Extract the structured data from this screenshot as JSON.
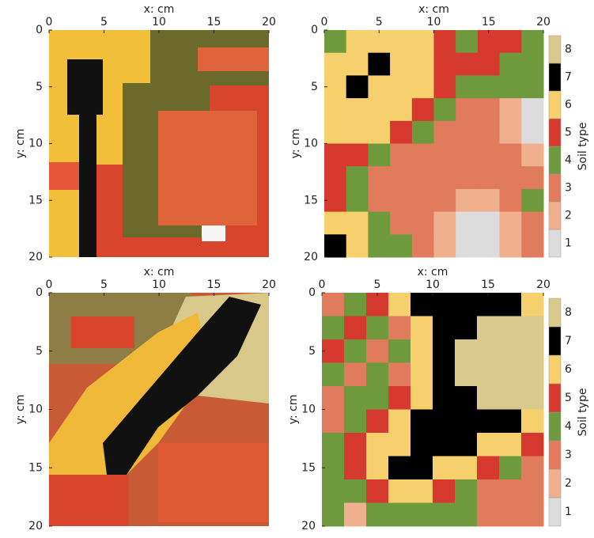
{
  "chart_data": [
    {
      "type": "image",
      "xlabel": "x: cm",
      "ylabel": "y: cm",
      "xlim": [
        0,
        20
      ],
      "ylim": [
        0,
        20
      ],
      "xticks": [
        0,
        5,
        10,
        15,
        20
      ],
      "yticks": [
        0,
        5,
        10,
        15,
        20
      ]
    },
    {
      "type": "heatmap",
      "xlabel": "x: cm",
      "ylabel": "y: cm",
      "xlim": [
        0,
        20
      ],
      "ylim": [
        0,
        20
      ],
      "xticks": [
        0,
        5,
        10,
        15,
        20
      ],
      "yticks": [
        0,
        5,
        10,
        15,
        20
      ],
      "colors": [
        "#dcdcdc",
        "#f0b08e",
        "#e07b5c",
        "#6e9a3d",
        "#d63a2e",
        "#f6d06c",
        "#000000",
        "#d9c98c"
      ],
      "clim": [
        0.5,
        8.5
      ],
      "cticks": [
        1,
        2,
        3,
        4,
        5,
        6,
        7,
        8
      ],
      "clabel": "Soil type",
      "z": [
        [
          4,
          6,
          6,
          6,
          6,
          5,
          4,
          5,
          5,
          4
        ],
        [
          6,
          6,
          7,
          6,
          6,
          5,
          5,
          5,
          4,
          4
        ],
        [
          6,
          7,
          6,
          6,
          6,
          5,
          4,
          4,
          4,
          4
        ],
        [
          6,
          6,
          6,
          6,
          5,
          4,
          3,
          3,
          2,
          1
        ],
        [
          6,
          6,
          6,
          5,
          4,
          3,
          3,
          3,
          2,
          1
        ],
        [
          5,
          5,
          4,
          3,
          3,
          3,
          3,
          3,
          3,
          2
        ],
        [
          5,
          4,
          3,
          3,
          3,
          3,
          3,
          3,
          3,
          3
        ],
        [
          5,
          4,
          3,
          3,
          3,
          3,
          2,
          2,
          3,
          4
        ],
        [
          6,
          6,
          4,
          3,
          3,
          2,
          1,
          1,
          2,
          3
        ],
        [
          7,
          6,
          4,
          4,
          3,
          2,
          1,
          1,
          2,
          3
        ]
      ]
    },
    {
      "type": "image",
      "xlabel": "x: cm",
      "ylabel": "y: cm",
      "xlim": [
        0,
        20
      ],
      "ylim": [
        0,
        20
      ],
      "xticks": [
        0,
        5,
        10,
        15,
        20
      ],
      "yticks": [
        0,
        5,
        10,
        15,
        20
      ]
    },
    {
      "type": "heatmap",
      "xlabel": "x: cm",
      "ylabel": "y: cm",
      "xlim": [
        0,
        20
      ],
      "ylim": [
        0,
        20
      ],
      "xticks": [
        0,
        5,
        10,
        15,
        20
      ],
      "yticks": [
        0,
        5,
        10,
        15,
        20
      ],
      "colors": [
        "#dcdcdc",
        "#f0b08e",
        "#e07b5c",
        "#6e9a3d",
        "#d63a2e",
        "#f6d06c",
        "#000000",
        "#d9c98c"
      ],
      "clim": [
        0.5,
        8.5
      ],
      "cticks": [
        1,
        2,
        3,
        4,
        5,
        6,
        7,
        8
      ],
      "clabel": "Soil type",
      "z": [
        [
          3,
          4,
          5,
          6,
          7,
          7,
          7,
          7,
          7,
          6
        ],
        [
          4,
          5,
          4,
          3,
          6,
          7,
          7,
          8,
          8,
          8
        ],
        [
          5,
          4,
          3,
          4,
          6,
          7,
          8,
          8,
          8,
          8
        ],
        [
          4,
          3,
          4,
          3,
          6,
          7,
          8,
          8,
          8,
          8
        ],
        [
          3,
          4,
          4,
          5,
          6,
          7,
          7,
          8,
          8,
          8
        ],
        [
          3,
          4,
          5,
          6,
          7,
          7,
          7,
          7,
          7,
          6
        ],
        [
          4,
          5,
          6,
          6,
          7,
          7,
          7,
          6,
          6,
          5
        ],
        [
          4,
          5,
          6,
          7,
          7,
          6,
          6,
          5,
          4,
          3
        ],
        [
          4,
          4,
          5,
          6,
          6,
          5,
          4,
          3,
          3,
          3
        ],
        [
          4,
          2,
          4,
          4,
          4,
          4,
          4,
          3,
          3,
          3
        ]
      ]
    }
  ]
}
